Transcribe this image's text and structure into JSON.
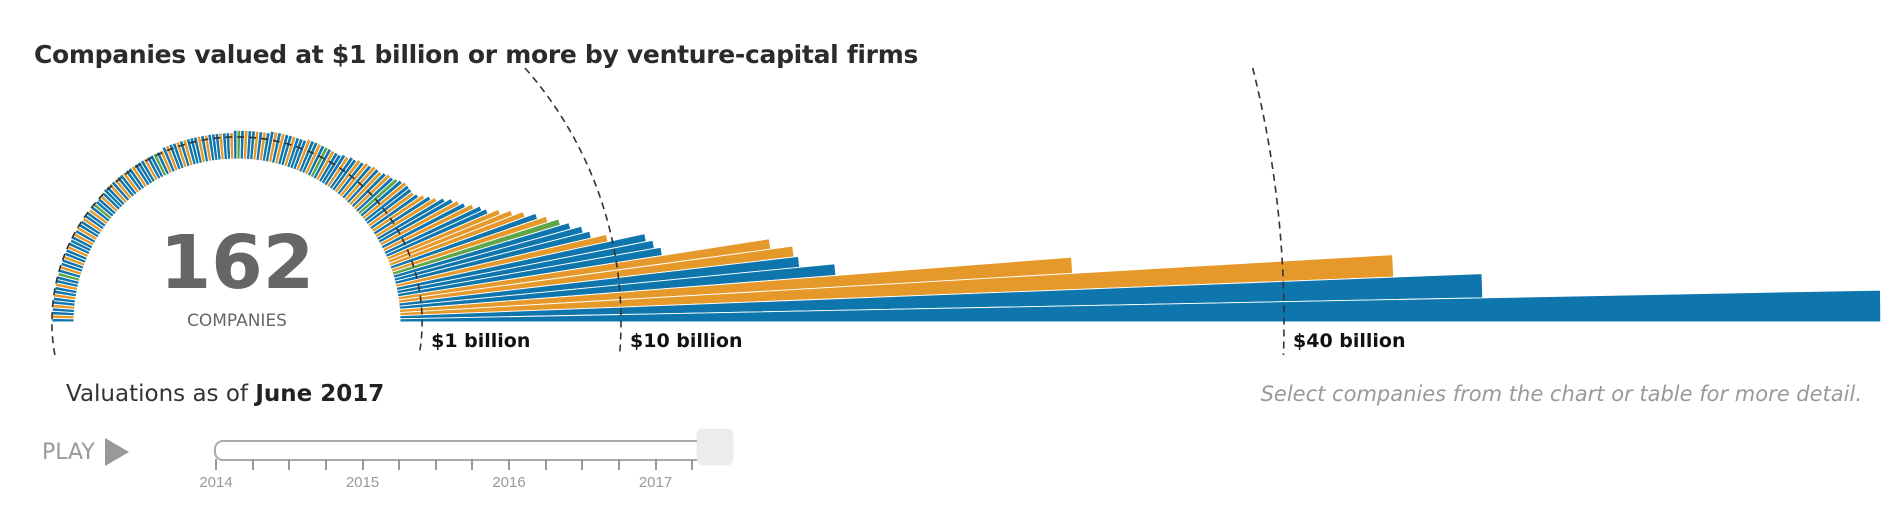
{
  "title": "Companies valued at $1 billion or more by venture-capital firms",
  "center": {
    "count": "162",
    "label": "COMPANIES"
  },
  "as_of": {
    "prefix": "Valuations as of ",
    "date": "June 2017"
  },
  "hint": "Select companies from the chart or table for more detail.",
  "play": {
    "label": "PLAY",
    "icon": "play-triangle-icon"
  },
  "timeline": {
    "years": [
      "2014",
      "2015",
      "2016",
      "2017"
    ],
    "selected": "June 2017",
    "position_fraction": 1.0
  },
  "colors": {
    "b": "#0f76ad",
    "o": "#e6992b",
    "g": "#5fa64a",
    "dash": "#333333"
  },
  "chart_data": {
    "type": "bar",
    "layout": "radial",
    "unit": "$ billion",
    "reference_lines": [
      {
        "value": 1,
        "label": "$1 billion"
      },
      {
        "value": 10,
        "label": "$10 billion"
      },
      {
        "value": 40,
        "label": "$40 billion"
      }
    ],
    "values": [
      1,
      1,
      1,
      1,
      1,
      1,
      1,
      1,
      1,
      1,
      1,
      1,
      1,
      1,
      1,
      1,
      1,
      1,
      1,
      1,
      1,
      1,
      1,
      1,
      1,
      1,
      1,
      1,
      1,
      1,
      1,
      1,
      1,
      1,
      1,
      1,
      1,
      1,
      1,
      1,
      1.1,
      1.1,
      1.1,
      1.1,
      1.1,
      1.1,
      1.1,
      1.1,
      1.1,
      1.1,
      1.1,
      1.1,
      1.1,
      1.1,
      1.1,
      1.1,
      1.1,
      1.1,
      1.1,
      1.1,
      1.2,
      1.2,
      1.2,
      1.2,
      1.2,
      1.2,
      1.2,
      1.2,
      1.2,
      1.2,
      1.2,
      1.2,
      1.2,
      1.2,
      1.2,
      1.2,
      1.2,
      1.2,
      1.2,
      1.2,
      1.3,
      1.3,
      1.3,
      1.3,
      1.3,
      1.3,
      1.3,
      1.3,
      1.3,
      1.3,
      1.4,
      1.4,
      1.4,
      1.4,
      1.4,
      1.4,
      1.4,
      1.4,
      1.4,
      1.4,
      1.5,
      1.5,
      1.5,
      1.5,
      1.5,
      1.5,
      1.5,
      1.5,
      1.5,
      1.5,
      1.6,
      1.6,
      1.7,
      1.7,
      1.8,
      1.8,
      1.9,
      1.9,
      2,
      2,
      2,
      2.1,
      2.2,
      2.2,
      2.3,
      2.4,
      2.5,
      2.5,
      2.5,
      2.5,
      2.6,
      2.8,
      3,
      3.2,
      3.5,
      3.8,
      4,
      4.2,
      4.5,
      4.8,
      5,
      5.5,
      6,
      6.5,
      7,
      7.4,
      7.9,
      8.3,
      8.8,
      9.1,
      9.8,
      11.5,
      11.8,
      12.1,
      17,
      18,
      18.2,
      19.8,
      30.5,
      45,
      49,
      67
    ],
    "color_codes": "bobbobbobbobbgbobbobbobbbobobbobbobgbbobbbobobbobbobbbobbgbobobbobobbbobobbbobbobgbobbobobbobobbobbbobbobgbobbbobbobobobobobgbobbobobobbobobbooobogbbbobbboobboob"
  }
}
